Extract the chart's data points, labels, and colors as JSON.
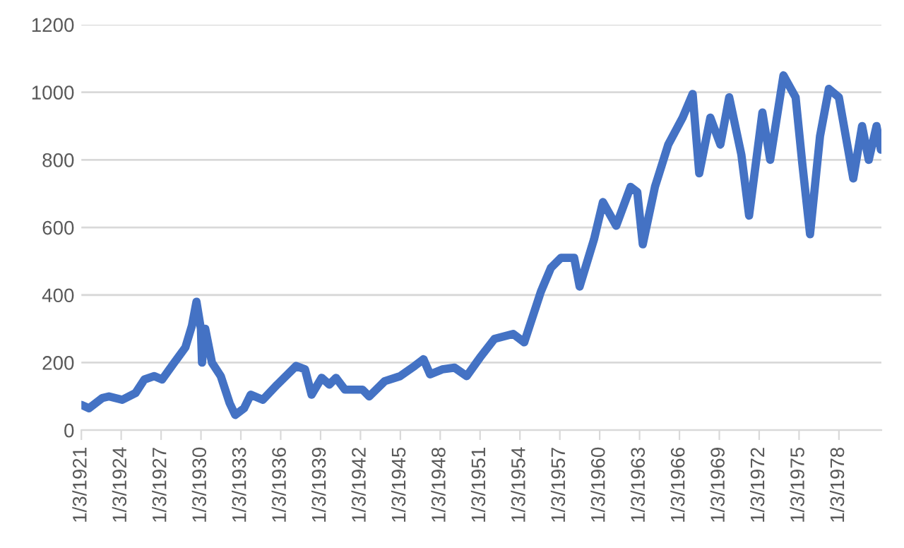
{
  "chart_data": {
    "type": "line",
    "x": [
      "1921-01-03",
      "1921-08",
      "1922-08",
      "1923-02",
      "1924-02",
      "1925-02",
      "1925-10",
      "1926-07",
      "1927-02",
      "1928-01",
      "1928-11",
      "1929-05",
      "1929-09",
      "1930-01",
      "1930-02",
      "1930-05",
      "1930-11",
      "1931-07",
      "1932-03",
      "1932-08",
      "1933-04",
      "1933-10",
      "1934-09",
      "1935-10",
      "1937-03",
      "1937-11",
      "1938-05",
      "1939-02",
      "1939-09",
      "1940-03",
      "1940-11",
      "1942-03",
      "1942-09",
      "1943-11",
      "1945-01",
      "1946-02",
      "1946-10",
      "1947-04",
      "1948-03",
      "1949-02",
      "1950-01",
      "1951-01",
      "1952-02",
      "1953-07",
      "1954-05",
      "1955-08",
      "1956-05",
      "1957-02",
      "1958-02",
      "1958-07",
      "1959-08",
      "1960-04",
      "1961-04",
      "1962-05",
      "1962-11",
      "1963-04",
      "1964-03",
      "1965-03",
      "1966-04",
      "1967-01",
      "1967-07",
      "1968-05",
      "1969-02",
      "1969-10",
      "1970-09",
      "1971-04",
      "1972-04",
      "1972-11",
      "1973-11",
      "1974-10",
      "1975-04",
      "1975-11",
      "1976-08",
      "1977-04",
      "1978-01",
      "1979-02",
      "1979-10",
      "1980-04",
      "1980-11",
      "1981-03"
    ],
    "series": [
      {
        "color": "#4472c4",
        "values": [
          75,
          65,
          95,
          100,
          90,
          110,
          150,
          160,
          150,
          200,
          245,
          310,
          380,
          300,
          200,
          300,
          200,
          160,
          80,
          45,
          65,
          105,
          90,
          135,
          190,
          180,
          105,
          155,
          135,
          155,
          120,
          120,
          100,
          145,
          160,
          190,
          210,
          165,
          180,
          185,
          160,
          215,
          270,
          285,
          260,
          410,
          480,
          510,
          510,
          425,
          565,
          675,
          605,
          720,
          705,
          550,
          720,
          845,
          925,
          995,
          760,
          925,
          845,
          985,
          815,
          635,
          940,
          800,
          1050,
          985,
          790,
          580,
          870,
          1010,
          985,
          745,
          900,
          800,
          900,
          830
        ]
      }
    ],
    "xlim": [
      "1921-01-03",
      "1981-03-15"
    ],
    "xticks": [
      {
        "value": "1921-01-03",
        "label": "1/3/1921"
      },
      {
        "value": "1924-01-03",
        "label": "1/3/1924"
      },
      {
        "value": "1927-01-03",
        "label": "1/3/1927"
      },
      {
        "value": "1930-01-03",
        "label": "1/3/1930"
      },
      {
        "value": "1933-01-03",
        "label": "1/3/1933"
      },
      {
        "value": "1936-01-03",
        "label": "1/3/1936"
      },
      {
        "value": "1939-01-03",
        "label": "1/3/1939"
      },
      {
        "value": "1942-01-03",
        "label": "1/3/1942"
      },
      {
        "value": "1945-01-03",
        "label": "1/3/1945"
      },
      {
        "value": "1948-01-03",
        "label": "1/3/1948"
      },
      {
        "value": "1951-01-03",
        "label": "1/3/1951"
      },
      {
        "value": "1954-01-03",
        "label": "1/3/1954"
      },
      {
        "value": "1957-01-03",
        "label": "1/3/1957"
      },
      {
        "value": "1960-01-03",
        "label": "1/3/1960"
      },
      {
        "value": "1963-01-03",
        "label": "1/3/1963"
      },
      {
        "value": "1966-01-03",
        "label": "1/3/1966"
      },
      {
        "value": "1969-01-03",
        "label": "1/3/1969"
      },
      {
        "value": "1972-01-03",
        "label": "1/3/1972"
      },
      {
        "value": "1975-01-03",
        "label": "1/3/1975"
      },
      {
        "value": "1978-01-03",
        "label": "1/3/1978"
      }
    ],
    "ylim": [
      0,
      1200
    ],
    "yticks": [
      0,
      200,
      400,
      600,
      800,
      1000,
      1200
    ],
    "grid": "y",
    "marker": "none",
    "line_style": "solid"
  }
}
